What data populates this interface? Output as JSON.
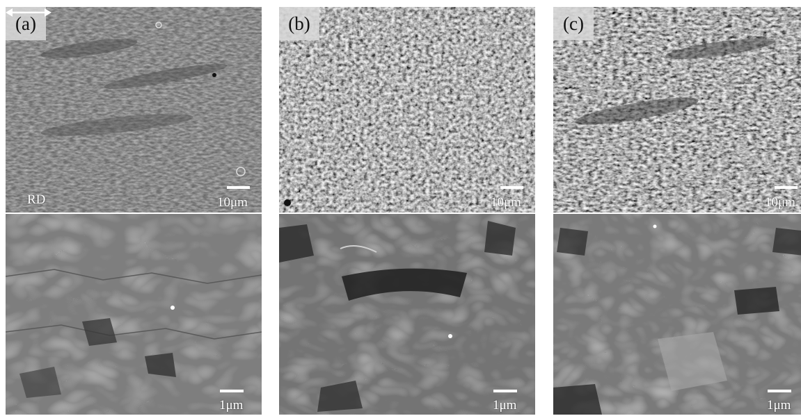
{
  "panels": [
    {
      "id": "a",
      "label": "(a)",
      "low_mag_scale": "10μm",
      "high_mag_scale": "1μm",
      "direction_label": "RD",
      "tone": "#686868"
    },
    {
      "id": "b",
      "label": "(b)",
      "low_mag_scale": "10μm",
      "high_mag_scale": "1μm",
      "tone": "#5e5e5e"
    },
    {
      "id": "c",
      "label": "(c)",
      "low_mag_scale": "10μm",
      "high_mag_scale": "1μm",
      "tone": "#5a5a5a"
    }
  ]
}
